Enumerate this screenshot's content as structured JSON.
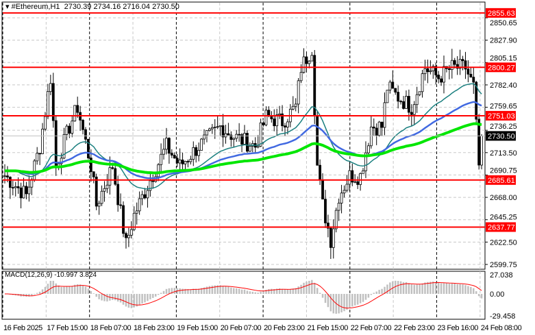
{
  "header": {
    "symbol_timeframe": "#Ethereum,H1",
    "ohlc": "2730.39 2734.16 2716.04 2730.50"
  },
  "macd": {
    "label": "MACD(12,26,9) -10.997 3.824",
    "ticks": [
      "27.038",
      "0.00",
      "-29.458"
    ]
  },
  "chart_data": {
    "type": "candlestick",
    "symbol": "#Ethereum",
    "timeframe": "H1",
    "ylim": [
      2599.75,
      2850.65
    ],
    "price_ticks": [
      "2850.65",
      "2827.90",
      "2805.15",
      "2782.40",
      "2759.65",
      "2736.25",
      "2713.50",
      "2690.75",
      "2668.00",
      "2645.25",
      "2622.50",
      "2599.75"
    ],
    "time_labels": [
      "16 Feb 2025",
      "17 Feb 15:00",
      "18 Feb 07:00",
      "18 Feb 23:00",
      "19 Feb 15:00",
      "20 Feb 07:00",
      "20 Feb 23:00",
      "21 Feb 15:00",
      "22 Feb 07:00",
      "22 Feb 23:00",
      "23 Feb 16:00",
      "24 Feb 08:00"
    ],
    "levels": [
      {
        "value": 2855.63,
        "label": "2855.63"
      },
      {
        "value": 2800.27,
        "label": "2800.27"
      },
      {
        "value": 2751.03,
        "label": "2751.03"
      },
      {
        "value": 2685.61,
        "label": "2685.61"
      },
      {
        "value": 2637.77,
        "label": "2637.77"
      }
    ],
    "current_price": {
      "value": 2730.5,
      "label": "2730.50"
    },
    "bars": 178,
    "close_path": [
      [
        0,
        2690
      ],
      [
        8,
        2670
      ],
      [
        13,
        2720
      ],
      [
        17,
        2790
      ],
      [
        19,
        2700
      ],
      [
        24,
        2740
      ],
      [
        27,
        2760
      ],
      [
        32,
        2700
      ],
      [
        34,
        2660
      ],
      [
        40,
        2700
      ],
      [
        45,
        2620
      ],
      [
        48,
        2650
      ],
      [
        53,
        2680
      ],
      [
        60,
        2720
      ],
      [
        65,
        2700
      ],
      [
        72,
        2720
      ],
      [
        80,
        2740
      ],
      [
        85,
        2730
      ],
      [
        93,
        2720
      ],
      [
        97,
        2750
      ],
      [
        103,
        2745
      ],
      [
        108,
        2760
      ],
      [
        110,
        2800
      ],
      [
        114,
        2820
      ],
      [
        116,
        2700
      ],
      [
        118,
        2660
      ],
      [
        121,
        2625
      ],
      [
        124,
        2670
      ],
      [
        128,
        2690
      ],
      [
        132,
        2690
      ],
      [
        136,
        2740
      ],
      [
        140,
        2740
      ],
      [
        142,
        2780
      ],
      [
        146,
        2770
      ],
      [
        151,
        2760
      ],
      [
        156,
        2800
      ],
      [
        161,
        2790
      ],
      [
        166,
        2800
      ],
      [
        171,
        2800
      ],
      [
        174,
        2780
      ],
      [
        176,
        2700
      ],
      [
        177,
        2730.5
      ]
    ],
    "colors": {
      "level": "#ff0000",
      "ma_fast": "#1a7f7f",
      "ma_mid": "#4169e1",
      "ma_slow": "#00e600",
      "macd_hist": "#c0c0c0",
      "macd_signal": "#ff0000"
    }
  }
}
